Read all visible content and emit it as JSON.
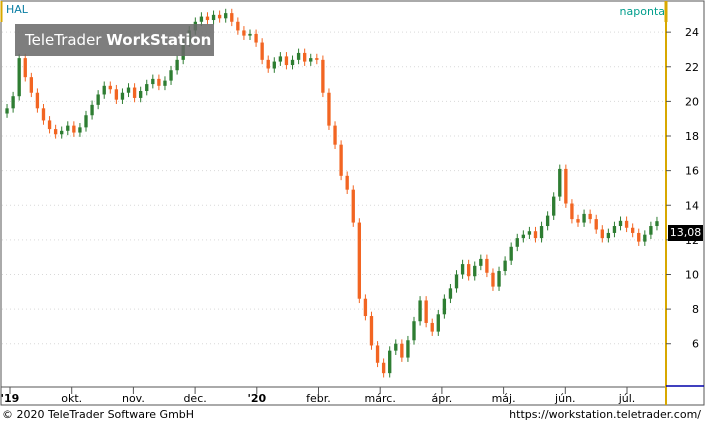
{
  "header": {
    "symbol": "HAL",
    "interval": "naponta"
  },
  "logo": {
    "part1": "TeleTrader ",
    "part2": "WorkStation"
  },
  "footer": {
    "copyright": "© 2020 TeleTrader Software GmbH",
    "url": "https://workstation.teletrader.com/"
  },
  "last_price": "13,08",
  "colors": {
    "up": "#2e7d32",
    "down": "#f26522",
    "axis": "#d8a800",
    "frame": "#555555",
    "grid": "#d9d9d9",
    "symbol": "#0a7ea4",
    "interval": "#009e8c"
  },
  "chart_data": {
    "type": "candlestick",
    "x_ticks": [
      "'19",
      "okt.",
      "nov.",
      "dec.",
      "'20",
      "febr.",
      "márc.",
      "ápr.",
      "máj.",
      "jún.",
      "júl."
    ],
    "y_ticks": [
      "6",
      "8",
      "10",
      "12",
      "14",
      "16",
      "18",
      "20",
      "22",
      "24"
    ],
    "ylim": [
      3.5,
      25.8
    ],
    "last": 13.08,
    "series": [
      {
        "name": "HAL",
        "closes": [
          19.6,
          20.3,
          22.5,
          21.4,
          20.5,
          19.6,
          18.9,
          18.4,
          18.1,
          18.3,
          18.6,
          18.2,
          18.5,
          19.2,
          19.8,
          20.4,
          20.9,
          20.7,
          20.1,
          20.5,
          20.8,
          20.2,
          20.6,
          21.0,
          21.3,
          20.9,
          21.2,
          21.8,
          22.4,
          23.4,
          24.1,
          24.6,
          24.9,
          24.7,
          25.0,
          24.8,
          25.1,
          24.6,
          24.1,
          23.8,
          23.9,
          23.4,
          22.4,
          21.9,
          22.3,
          22.6,
          22.1,
          22.4,
          22.8,
          22.3,
          22.5,
          22.4,
          20.5,
          18.6,
          17.5,
          15.7,
          14.9,
          13.0,
          8.6,
          7.6,
          5.9,
          4.9,
          4.3,
          5.6,
          6.0,
          5.2,
          6.2,
          7.3,
          8.5,
          7.2,
          6.7,
          7.7,
          8.6,
          9.2,
          10.0,
          10.6,
          9.9,
          10.5,
          10.9,
          10.1,
          9.3,
          10.2,
          10.8,
          11.6,
          12.1,
          12.3,
          12.5,
          12.1,
          12.8,
          13.4,
          14.5,
          16.1,
          14.1,
          13.2,
          13.0,
          13.5,
          13.2,
          12.6,
          12.1,
          12.4,
          12.8,
          13.1,
          12.7,
          12.4,
          11.9,
          12.3,
          12.8,
          13.08
        ]
      }
    ]
  }
}
